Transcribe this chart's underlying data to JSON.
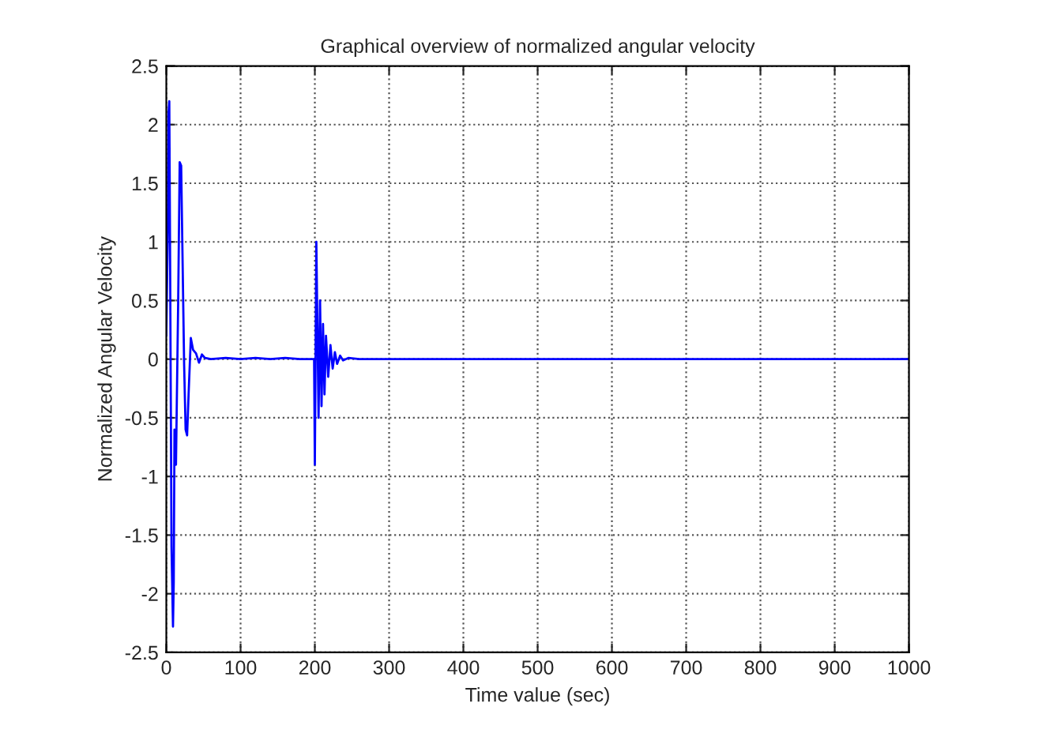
{
  "chart_data": {
    "type": "line",
    "title": "Graphical overview of normalized angular velocity",
    "xlabel": "Time value (sec)",
    "ylabel": "Normalized Angular Velocity",
    "series": [
      {
        "color": "#0000ff",
        "x": [
          0,
          2,
          3,
          4,
          5,
          7,
          9,
          10,
          11,
          13,
          16,
          18,
          20,
          22,
          24,
          26,
          28,
          30,
          33,
          36,
          40,
          44,
          48,
          52,
          60,
          80,
          100,
          120,
          140,
          160,
          180,
          199,
          200,
          202,
          205,
          207,
          209,
          211,
          213,
          215,
          218,
          221,
          224,
          227,
          230,
          234,
          238,
          245,
          260,
          300,
          400,
          500,
          600,
          700,
          800,
          900,
          1000
        ],
        "values": [
          0.2,
          1.1,
          2.1,
          2.2,
          1.0,
          -1.6,
          -2.28,
          -1.9,
          -0.6,
          -0.9,
          0.5,
          1.68,
          1.65,
          0.8,
          -0.05,
          -0.6,
          -0.65,
          -0.3,
          0.18,
          0.08,
          0.05,
          -0.03,
          0.04,
          0.01,
          0.0,
          0.01,
          0.0,
          0.01,
          0.0,
          0.01,
          0.0,
          0.0,
          -0.9,
          1.0,
          -0.5,
          0.5,
          -0.4,
          0.3,
          -0.3,
          0.2,
          -0.15,
          0.12,
          -0.08,
          0.06,
          -0.04,
          0.03,
          -0.01,
          0.01,
          0.0,
          0.0,
          0.0,
          0.0,
          0.0,
          0.0,
          0.0,
          0.0,
          0.0
        ]
      }
    ],
    "xlim": [
      0,
      1000
    ],
    "xticks": [
      0,
      100,
      200,
      300,
      400,
      500,
      600,
      700,
      800,
      900,
      1000
    ],
    "ylim": [
      -2.5,
      2.5
    ],
    "yticks": [
      -2.5,
      -2,
      -1.5,
      -1,
      -0.5,
      0,
      0.5,
      1,
      1.5,
      2,
      2.5
    ],
    "grid": true,
    "line_style": "solid"
  }
}
